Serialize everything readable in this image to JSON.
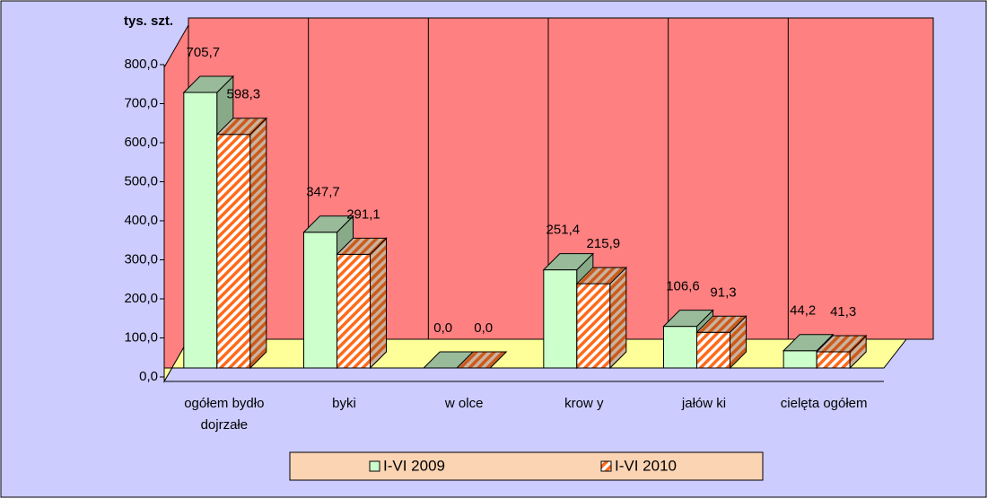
{
  "chart_data": {
    "type": "bar3d",
    "y_axis_label": "tys. szt.",
    "categories": [
      "ogółem bydło dojrzałe",
      "byki",
      "w olce",
      "krow y",
      "jałów ki",
      "cielęta ogółem"
    ],
    "series": [
      {
        "name": "I-VI 2009",
        "color": "#ccffcc",
        "values": [
          705.7,
          347.7,
          0.0,
          251.4,
          106.6,
          44.2
        ],
        "value_labels": [
          "705,7",
          "347,7",
          "0,0",
          "251,4",
          "106,6",
          "44,2"
        ]
      },
      {
        "name": "I-VI 2010",
        "color": "#ff6a1a",
        "values": [
          598.3,
          291.1,
          0.0,
          215.9,
          91.3,
          41.3
        ],
        "value_labels": [
          "598,3",
          "291,1",
          "0,0",
          "215,9",
          "91,3",
          "41,3"
        ]
      }
    ],
    "ylim": [
      0,
      800
    ],
    "yticks": [
      {
        "value": 0,
        "label": "0,0"
      },
      {
        "value": 100,
        "label": "100,0"
      },
      {
        "value": 200,
        "label": "200,0"
      },
      {
        "value": 300,
        "label": "300,0"
      },
      {
        "value": 400,
        "label": "400,0"
      },
      {
        "value": 500,
        "label": "500,0"
      },
      {
        "value": 600,
        "label": "600,0"
      },
      {
        "value": 700,
        "label": "700,0"
      },
      {
        "value": 800,
        "label": "800,0"
      }
    ],
    "legend": "bottom"
  }
}
